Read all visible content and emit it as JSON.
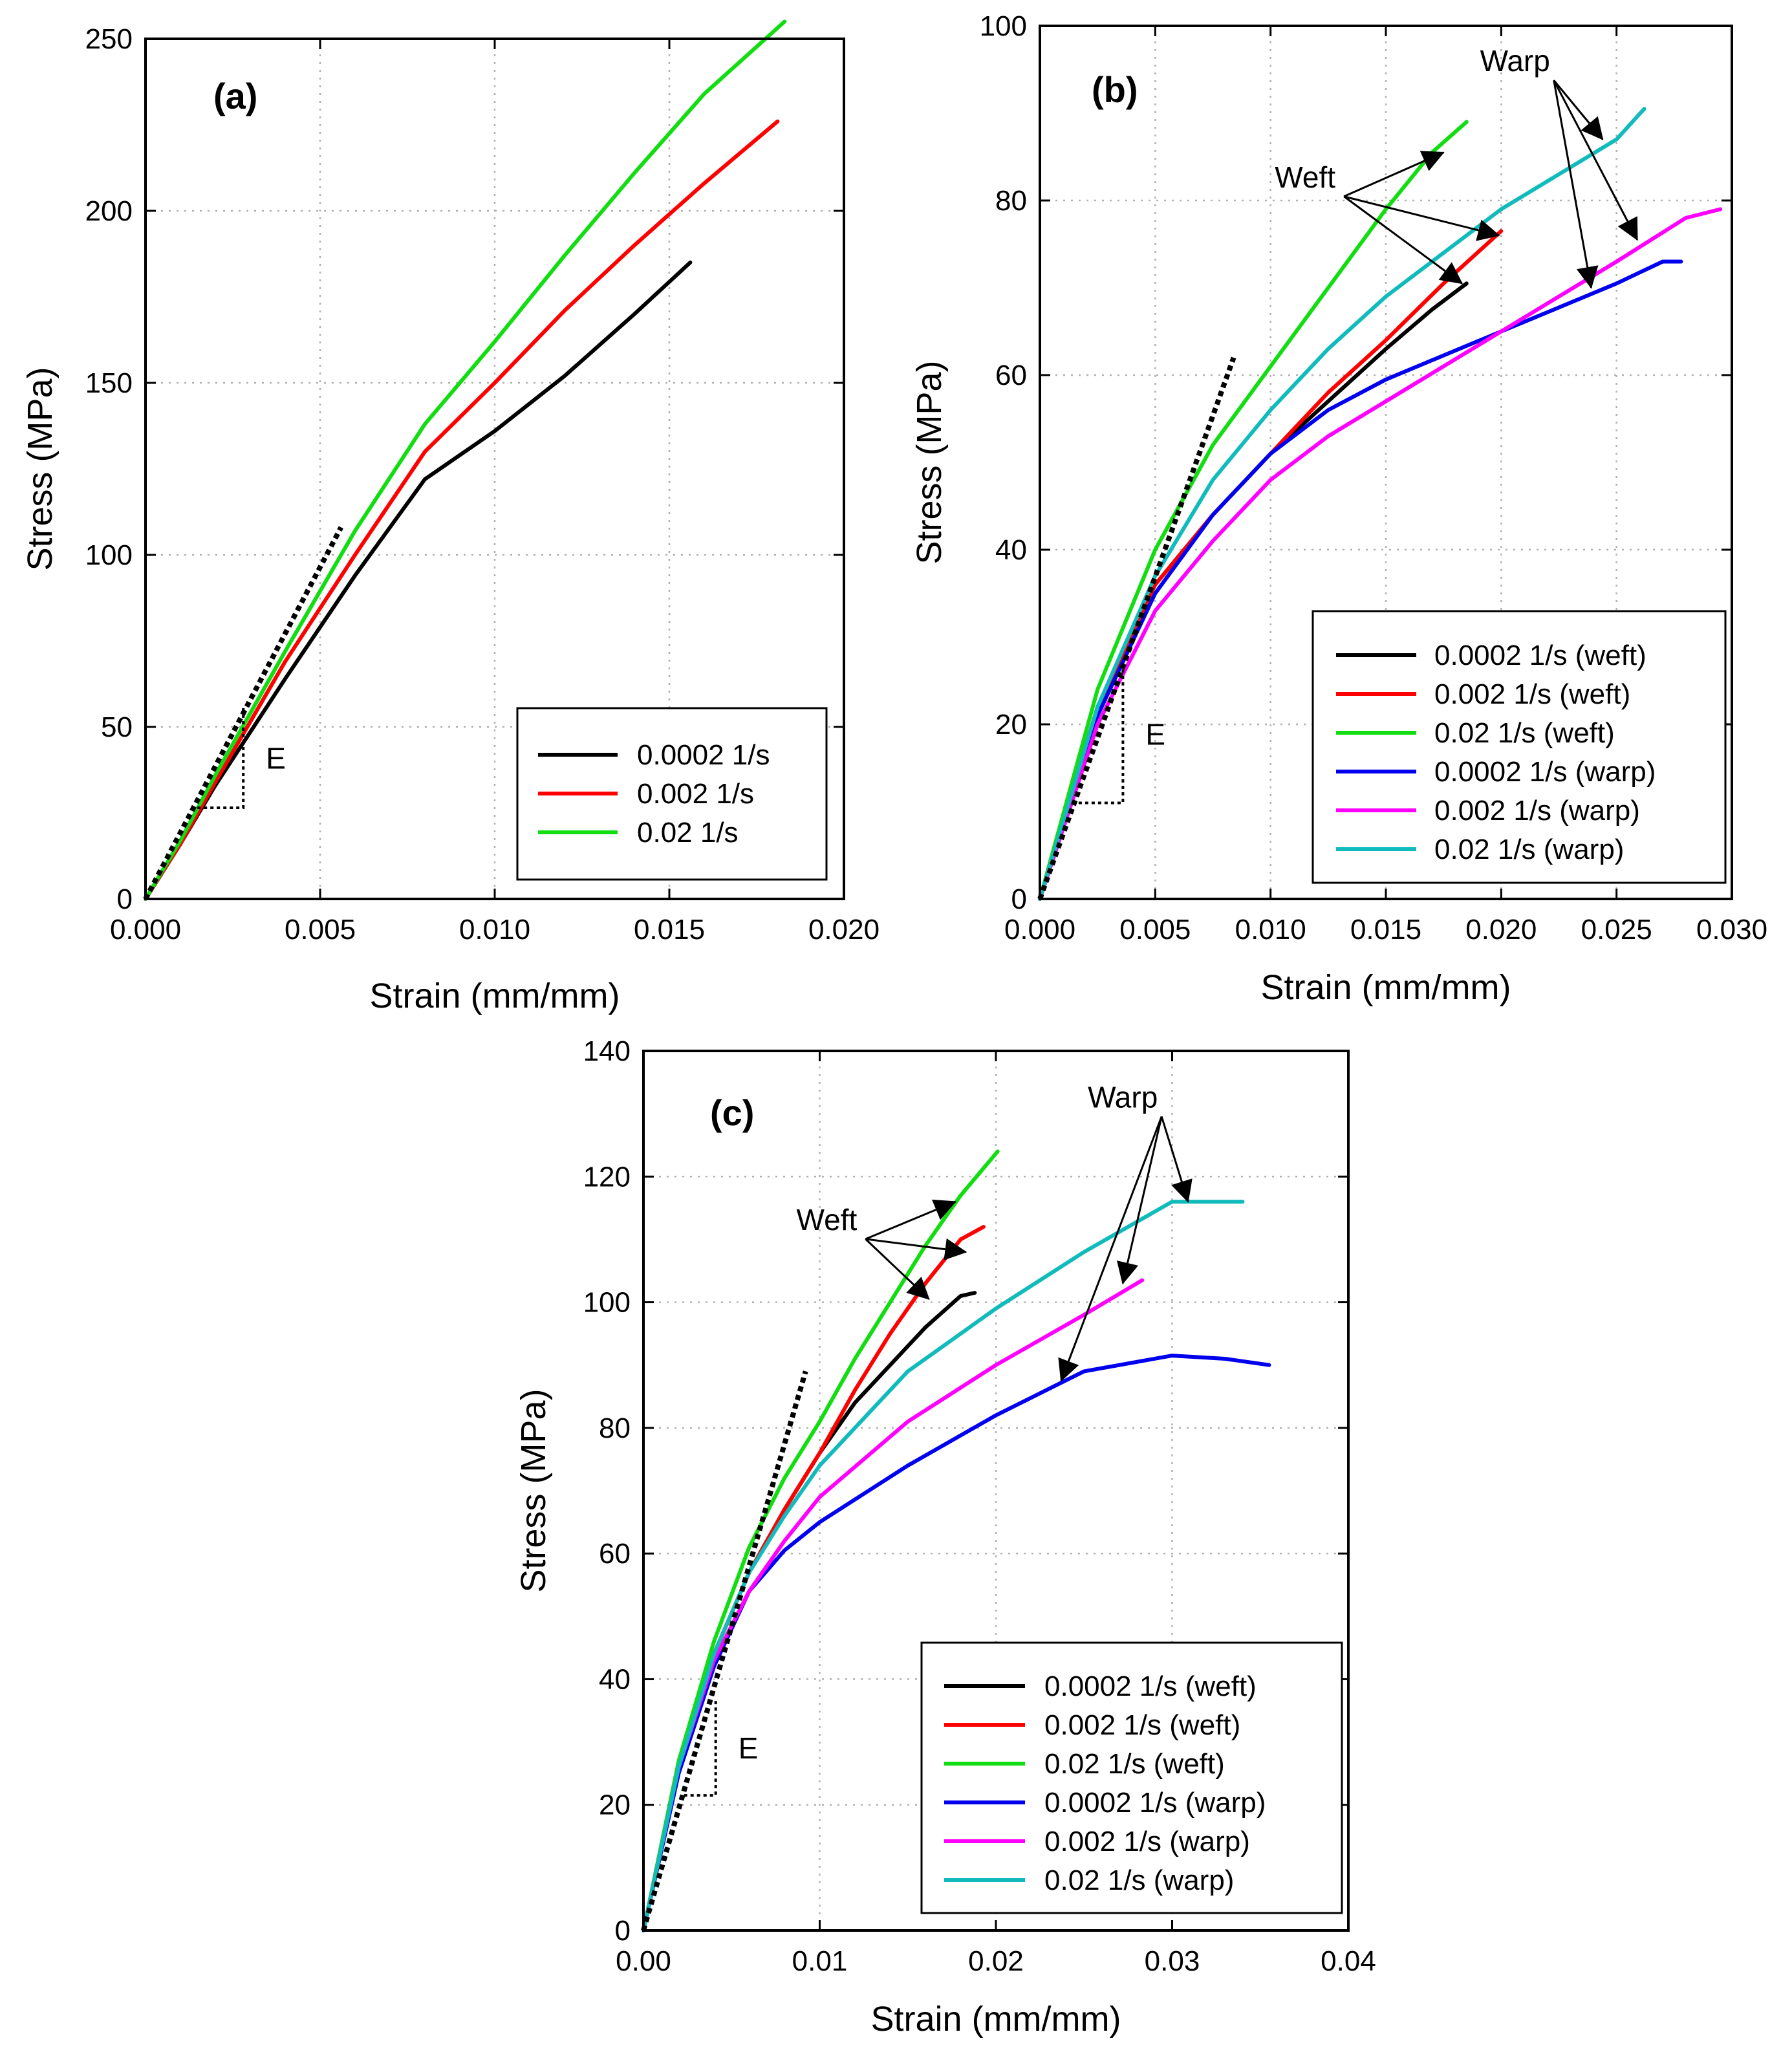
{
  "colors": {
    "black": "#000000",
    "red": "#ff0000",
    "green": "#11dd11",
    "blue": "#0000ee",
    "magenta": "#ff00ff",
    "cyan": "#11bbbb",
    "grid": "#b0b0b0"
  },
  "chart_data": [
    {
      "id": "a",
      "type": "line",
      "panel_label": "(a)",
      "xlabel": "Strain (mm/mm)",
      "ylabel": "Stress (MPa)",
      "xlim": [
        0,
        0.02
      ],
      "ylim": [
        0,
        250
      ],
      "xticks": [
        0,
        0.005,
        0.01,
        0.015,
        0.02
      ],
      "xtick_labels": [
        "0.000",
        "0.005",
        "0.010",
        "0.015",
        "0.020"
      ],
      "yticks": [
        0,
        50,
        100,
        150,
        200,
        250
      ],
      "ytick_labels": [
        "0",
        "50",
        "100",
        "150",
        "200",
        "250"
      ],
      "grid": true,
      "legend_position": "bottom-right",
      "series": [
        {
          "name": "0.0002 1/s",
          "color": "black",
          "points": [
            [
              0,
              0
            ],
            [
              0.001,
              16
            ],
            [
              0.002,
              33
            ],
            [
              0.004,
              64
            ],
            [
              0.006,
              94
            ],
            [
              0.008,
              122
            ],
            [
              0.01,
              136
            ],
            [
              0.012,
              152
            ],
            [
              0.014,
              170
            ],
            [
              0.0156,
              185
            ]
          ]
        },
        {
          "name": "0.002 1/s",
          "color": "red",
          "points": [
            [
              0,
              0
            ],
            [
              0.001,
              16
            ],
            [
              0.002,
              34
            ],
            [
              0.004,
              69
            ],
            [
              0.006,
              100
            ],
            [
              0.008,
              130
            ],
            [
              0.01,
              150
            ],
            [
              0.012,
              171
            ],
            [
              0.014,
              190
            ],
            [
              0.016,
              208
            ],
            [
              0.0181,
              226
            ]
          ]
        },
        {
          "name": "0.02 1/s",
          "color": "green",
          "points": [
            [
              0,
              0
            ],
            [
              0.001,
              17
            ],
            [
              0.002,
              36
            ],
            [
              0.004,
              72
            ],
            [
              0.006,
              107
            ],
            [
              0.008,
              138
            ],
            [
              0.01,
              162
            ],
            [
              0.012,
              187
            ],
            [
              0.014,
              211
            ],
            [
              0.016,
              234
            ],
            [
              0.0183,
              255
            ]
          ]
        }
      ],
      "modulus_line": {
        "points": [
          [
            0,
            0
          ],
          [
            0.0056,
            108
          ]
        ]
      },
      "modulus_triangle": {
        "points": [
          [
            0.0013,
            26.5
          ],
          [
            0.0028,
            26.5
          ],
          [
            0.0028,
            56
          ]
        ],
        "label": "E"
      },
      "annotations": []
    },
    {
      "id": "b",
      "type": "line",
      "panel_label": "(b)",
      "xlabel": "Strain (mm/mm)",
      "ylabel": "Stress (MPa)",
      "xlim": [
        0,
        0.03
      ],
      "ylim": [
        0,
        100
      ],
      "xticks": [
        0,
        0.005,
        0.01,
        0.015,
        0.02,
        0.025,
        0.03
      ],
      "xtick_labels": [
        "0.000",
        "0.005",
        "0.010",
        "0.015",
        "0.020",
        "0.025",
        "0.030"
      ],
      "yticks": [
        0,
        20,
        40,
        60,
        80,
        100
      ],
      "ytick_labels": [
        "0",
        "20",
        "40",
        "60",
        "80",
        "100"
      ],
      "grid": true,
      "legend_position": "bottom-right",
      "series": [
        {
          "name": "0.0002 1/s (weft)",
          "color": "black",
          "points": [
            [
              0,
              0
            ],
            [
              0.0025,
              22
            ],
            [
              0.005,
              36
            ],
            [
              0.0075,
              44
            ],
            [
              0.01,
              51
            ],
            [
              0.0125,
              57
            ],
            [
              0.015,
              63
            ],
            [
              0.017,
              67.5
            ],
            [
              0.0185,
              70.5
            ]
          ]
        },
        {
          "name": "0.002 1/s (weft)",
          "color": "red",
          "points": [
            [
              0,
              0
            ],
            [
              0.0025,
              22
            ],
            [
              0.005,
              36
            ],
            [
              0.0075,
              44
            ],
            [
              0.01,
              51
            ],
            [
              0.0125,
              58
            ],
            [
              0.015,
              64
            ],
            [
              0.0175,
              70.5
            ],
            [
              0.02,
              76.5
            ]
          ]
        },
        {
          "name": "0.02 1/s (weft)",
          "color": "green",
          "points": [
            [
              0,
              0
            ],
            [
              0.0025,
              24
            ],
            [
              0.005,
              40
            ],
            [
              0.0075,
              52
            ],
            [
              0.01,
              61
            ],
            [
              0.0125,
              70
            ],
            [
              0.015,
              79
            ],
            [
              0.017,
              85.5
            ],
            [
              0.0185,
              89
            ]
          ]
        },
        {
          "name": "0.0002 1/s (warp)",
          "color": "blue",
          "points": [
            [
              0,
              0
            ],
            [
              0.0025,
              21
            ],
            [
              0.005,
              35
            ],
            [
              0.0075,
              44
            ],
            [
              0.01,
              51
            ],
            [
              0.0125,
              56
            ],
            [
              0.015,
              59.5
            ],
            [
              0.02,
              65
            ],
            [
              0.025,
              70.5
            ],
            [
              0.027,
              73
            ],
            [
              0.0278,
              73
            ]
          ]
        },
        {
          "name": "0.002 1/s (warp)",
          "color": "magenta",
          "points": [
            [
              0,
              0
            ],
            [
              0.0025,
              20
            ],
            [
              0.005,
              33
            ],
            [
              0.0075,
              41
            ],
            [
              0.01,
              48
            ],
            [
              0.0125,
              53
            ],
            [
              0.015,
              57
            ],
            [
              0.02,
              65
            ],
            [
              0.025,
              73
            ],
            [
              0.028,
              78
            ],
            [
              0.0295,
              79
            ]
          ]
        },
        {
          "name": "0.02 1/s (warp)",
          "color": "cyan",
          "points": [
            [
              0,
              0
            ],
            [
              0.0025,
              22
            ],
            [
              0.005,
              37
            ],
            [
              0.0075,
              48
            ],
            [
              0.01,
              56
            ],
            [
              0.0125,
              63
            ],
            [
              0.015,
              69
            ],
            [
              0.02,
              79
            ],
            [
              0.025,
              87
            ],
            [
              0.0262,
              90.5
            ]
          ]
        }
      ],
      "modulus_line": {
        "points": [
          [
            0,
            0
          ],
          [
            0.0084,
            62
          ]
        ]
      },
      "modulus_triangle": {
        "points": [
          [
            0.0014,
            11
          ],
          [
            0.0036,
            11
          ],
          [
            0.0036,
            27
          ]
        ],
        "label": "E"
      },
      "annotations": [
        {
          "text": "Weft",
          "anchor": [
            0.0115,
            81.5
          ],
          "targets": [
            [
              0.0175,
              85.5
            ],
            [
              0.0199,
              76
            ],
            [
              0.0183,
              70.5
            ]
          ]
        },
        {
          "text": "Warp",
          "anchor": [
            0.0206,
            94.8
          ],
          "targets": [
            [
              0.0244,
              87
            ],
            [
              0.0259,
              75.5
            ],
            [
              0.0239,
              70
            ]
          ]
        }
      ]
    },
    {
      "id": "c",
      "type": "line",
      "panel_label": "(c)",
      "xlabel": "Strain (mm/mm)",
      "ylabel": "Stress (MPa)",
      "xlim": [
        0,
        0.04
      ],
      "ylim": [
        0,
        140
      ],
      "xticks": [
        0,
        0.01,
        0.02,
        0.03,
        0.04
      ],
      "xtick_labels": [
        "0.00",
        "0.01",
        "0.02",
        "0.03",
        "0.04"
      ],
      "yticks": [
        0,
        20,
        40,
        60,
        80,
        100,
        120,
        140
      ],
      "ytick_labels": [
        "0",
        "20",
        "40",
        "60",
        "80",
        "100",
        "120",
        "140"
      ],
      "grid": true,
      "legend_position": "bottom-right",
      "series": [
        {
          "name": "0.0002 1/s (weft)",
          "color": "black",
          "points": [
            [
              0,
              0
            ],
            [
              0.002,
              26
            ],
            [
              0.004,
              44
            ],
            [
              0.006,
              57
            ],
            [
              0.008,
              67
            ],
            [
              0.01,
              76
            ],
            [
              0.012,
              84
            ],
            [
              0.014,
              90
            ],
            [
              0.016,
              96
            ],
            [
              0.018,
              101
            ],
            [
              0.0188,
              101.5
            ]
          ]
        },
        {
          "name": "0.002 1/s (weft)",
          "color": "red",
          "points": [
            [
              0,
              0
            ],
            [
              0.002,
              26
            ],
            [
              0.004,
              44
            ],
            [
              0.006,
              57
            ],
            [
              0.008,
              67
            ],
            [
              0.01,
              76
            ],
            [
              0.012,
              86
            ],
            [
              0.014,
              95
            ],
            [
              0.016,
              103
            ],
            [
              0.018,
              110
            ],
            [
              0.0193,
              112
            ]
          ]
        },
        {
          "name": "0.02 1/s (weft)",
          "color": "green",
          "points": [
            [
              0,
              0
            ],
            [
              0.002,
              27
            ],
            [
              0.004,
              46
            ],
            [
              0.006,
              61
            ],
            [
              0.008,
              72
            ],
            [
              0.01,
              81
            ],
            [
              0.012,
              91
            ],
            [
              0.014,
              100
            ],
            [
              0.016,
              109
            ],
            [
              0.018,
              117
            ],
            [
              0.0201,
              124
            ]
          ]
        },
        {
          "name": "0.0002 1/s (warp)",
          "color": "blue",
          "points": [
            [
              0,
              0
            ],
            [
              0.002,
              25
            ],
            [
              0.004,
              42
            ],
            [
              0.006,
              54
            ],
            [
              0.008,
              60.5
            ],
            [
              0.01,
              65
            ],
            [
              0.015,
              74
            ],
            [
              0.02,
              82
            ],
            [
              0.025,
              89
            ],
            [
              0.03,
              91.5
            ],
            [
              0.033,
              91
            ],
            [
              0.0355,
              90
            ]
          ]
        },
        {
          "name": "0.002 1/s (warp)",
          "color": "magenta",
          "points": [
            [
              0,
              0
            ],
            [
              0.002,
              26
            ],
            [
              0.004,
              43
            ],
            [
              0.006,
              54
            ],
            [
              0.008,
              62
            ],
            [
              0.01,
              69
            ],
            [
              0.015,
              81
            ],
            [
              0.02,
              90
            ],
            [
              0.025,
              98
            ],
            [
              0.0283,
              103.5
            ]
          ]
        },
        {
          "name": "0.02 1/s (warp)",
          "color": "cyan",
          "points": [
            [
              0,
              0
            ],
            [
              0.002,
              26
            ],
            [
              0.004,
              44
            ],
            [
              0.006,
              57
            ],
            [
              0.008,
              66
            ],
            [
              0.01,
              74
            ],
            [
              0.015,
              89
            ],
            [
              0.02,
              99
            ],
            [
              0.025,
              108
            ],
            [
              0.03,
              116
            ],
            [
              0.034,
              116
            ]
          ]
        }
      ],
      "modulus_line": {
        "points": [
          [
            0,
            0
          ],
          [
            0.0092,
            89
          ]
        ]
      },
      "modulus_triangle": {
        "points": [
          [
            0.0023,
            21.5
          ],
          [
            0.0041,
            21.5
          ],
          [
            0.0041,
            37
          ]
        ],
        "label": "E"
      },
      "annotations": [
        {
          "text": "Weft",
          "anchor": [
            0.0104,
            111.5
          ],
          "targets": [
            [
              0.0177,
              116
            ],
            [
              0.0183,
              108
            ],
            [
              0.0162,
              100.5
            ]
          ]
        },
        {
          "text": "Warp",
          "anchor": [
            0.0272,
            131
          ],
          "targets": [
            [
              0.0309,
              116
            ],
            [
              0.0272,
              103
            ],
            [
              0.0237,
              87.5
            ]
          ]
        }
      ]
    }
  ]
}
